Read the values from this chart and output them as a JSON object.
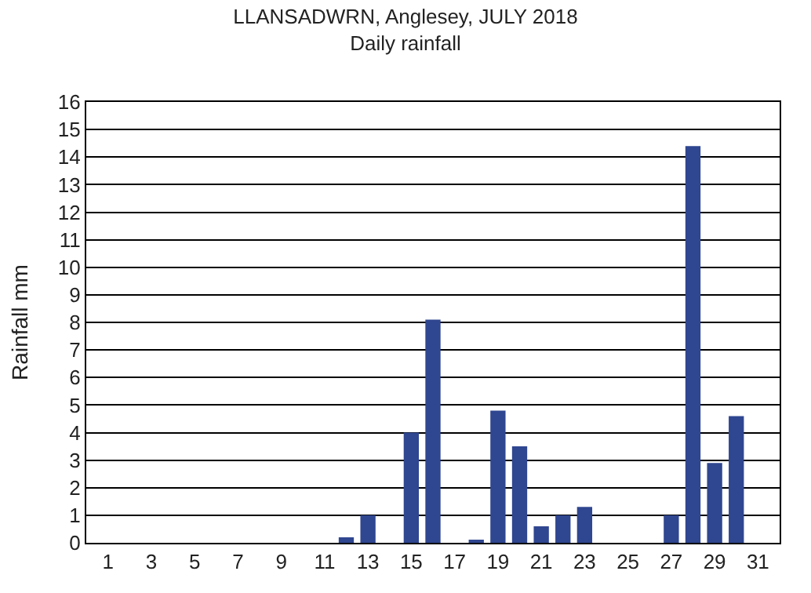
{
  "chart_data": {
    "type": "bar",
    "title": "LLANSADWRN, Anglesey, JULY 2018",
    "subtitle": "Daily rainfall",
    "ylabel": "Rainfall mm",
    "x": [
      1,
      2,
      3,
      4,
      5,
      6,
      7,
      8,
      9,
      10,
      11,
      12,
      13,
      14,
      15,
      16,
      17,
      18,
      19,
      20,
      21,
      22,
      23,
      24,
      25,
      26,
      27,
      28,
      29,
      30,
      31
    ],
    "values": [
      0,
      0,
      0,
      0,
      0,
      0,
      0,
      0,
      0,
      0,
      0,
      0.2,
      1.0,
      0,
      4.0,
      8.1,
      0,
      0.1,
      4.8,
      3.5,
      0.6,
      1.0,
      1.3,
      0,
      0,
      0,
      1.0,
      14.4,
      2.9,
      4.6,
      0
    ],
    "color": "#2f4690",
    "xlim": [
      0,
      32
    ],
    "xticks": [
      1,
      3,
      5,
      7,
      9,
      11,
      13,
      15,
      17,
      19,
      21,
      23,
      25,
      27,
      29,
      31
    ],
    "ylim": [
      0,
      16
    ],
    "yticks": [
      0,
      1,
      2,
      3,
      4,
      5,
      6,
      7,
      8,
      9,
      10,
      11,
      12,
      13,
      14,
      15,
      16
    ],
    "grid": "y"
  }
}
